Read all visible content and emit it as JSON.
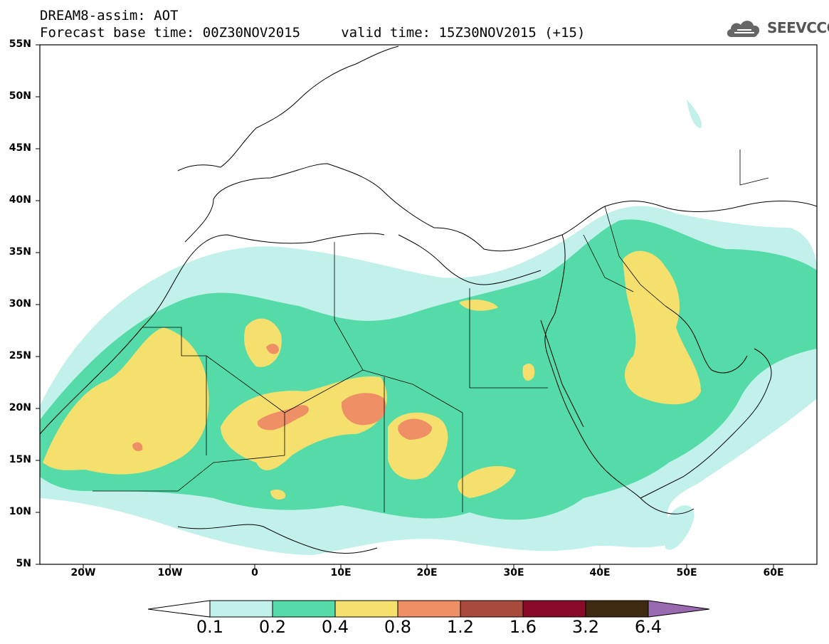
{
  "header": {
    "title_line1": "DREAM8-assim: AOT",
    "title_line2": "Forecast base time: 00Z30NOV2015     valid time: 15Z30NOV2015 (+15)",
    "logo_text": "SEEVCCC"
  },
  "map": {
    "lat_labels": [
      "55N",
      "50N",
      "45N",
      "40N",
      "35N",
      "30N",
      "25N",
      "20N",
      "15N",
      "10N",
      "5N"
    ],
    "lon_labels": [
      "20W",
      "10W",
      "0",
      "10E",
      "20E",
      "30E",
      "40E",
      "50E",
      "60E"
    ],
    "land_outline_color": "#000000",
    "background": "#ffffff"
  },
  "colorbar": {
    "levels": [
      "0.1",
      "0.2",
      "0.4",
      "0.8",
      "1.2",
      "1.6",
      "3.2",
      "6.4"
    ],
    "colors": [
      "#ffffff",
      "#c2f0ea",
      "#55dba8",
      "#f5e06e",
      "#ee8f66",
      "#a84a3c",
      "#8a0a2a",
      "#3e2a10",
      "#9a6ab0"
    ]
  }
}
